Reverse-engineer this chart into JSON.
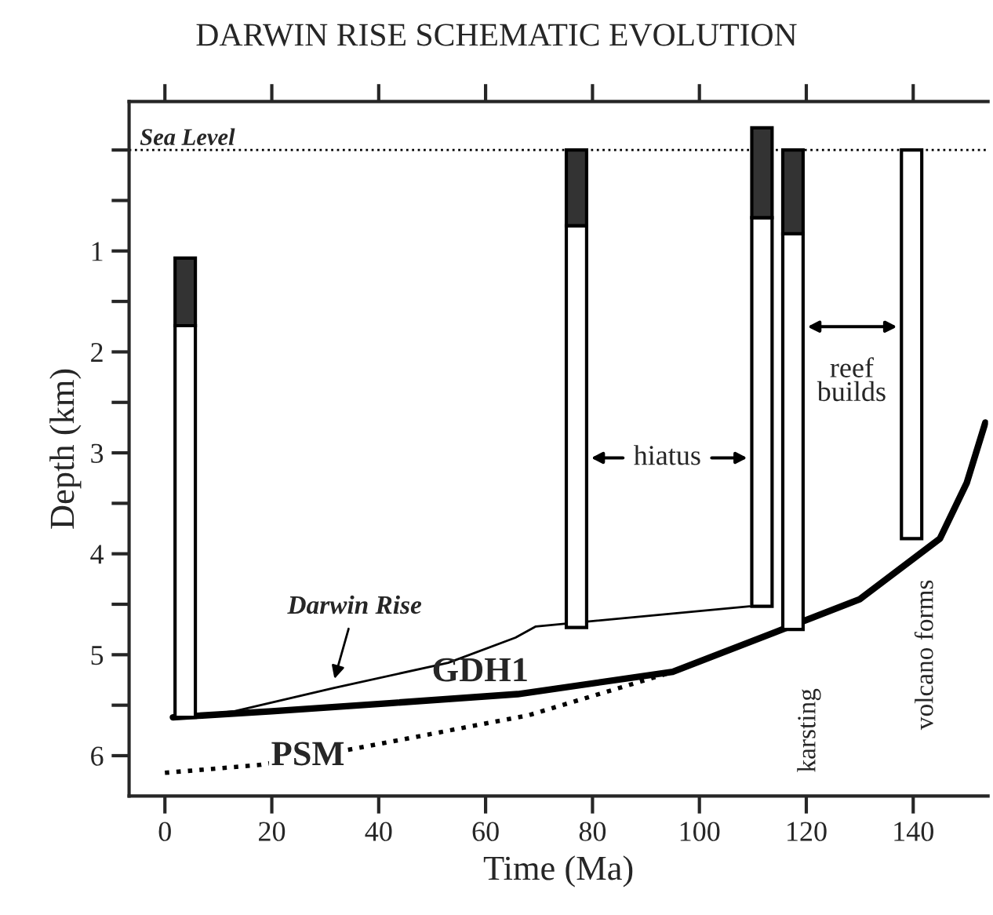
{
  "chart_data": {
    "type": "line",
    "title": "DARWIN RISE SCHEMATIC EVOLUTION",
    "xlabel": "Time (Ma)",
    "ylabel": "Depth (km)",
    "xlim": [
      -6.7,
      154
    ],
    "xticks": [
      0,
      20,
      40,
      60,
      80,
      100,
      120,
      140
    ],
    "ylim": [
      6.4,
      -0.48
    ],
    "yticks": [
      1,
      2,
      3,
      4,
      5,
      6
    ],
    "grid": false,
    "legend": false,
    "series": [
      {
        "type": "bar",
        "color": "#ffffff",
        "x": [
          3.8,
          77,
          111.7,
          117.5,
          139.7
        ],
        "base": [
          1.74,
          0.75,
          0.67,
          0.83,
          0.0
        ],
        "values": [
          3.88,
          3.98,
          3.85,
          3.92,
          3.85
        ]
      },
      {
        "type": "bar",
        "color": "#333333",
        "x": [
          3.8,
          77,
          111.7,
          117.5
        ],
        "base": [
          1.07,
          0.0,
          -0.22,
          0.0
        ],
        "values": [
          0.67,
          0.75,
          0.89,
          0.83
        ]
      },
      {
        "name": "Darwin Rise",
        "color": "#000000",
        "line_style": "solid",
        "x": [
          1.5,
          13,
          31.5,
          53,
          65.6,
          69.4,
          109.4
        ],
        "values": [
          5.62,
          5.56,
          5.33,
          5.08,
          4.83,
          4.72,
          4.52
        ]
      },
      {
        "name": "GDH1",
        "color": "#000000",
        "line_style": "solid",
        "x": [
          1.5,
          20,
          42,
          66,
          95,
          114,
          130,
          145,
          150,
          153.5
        ],
        "values": [
          5.62,
          5.56,
          5.48,
          5.39,
          5.17,
          4.78,
          4.45,
          3.85,
          3.3,
          2.7
        ]
      },
      {
        "name": "PSM",
        "color": "#000000",
        "line_style": "dotted",
        "x": [
          0,
          18,
          35.5,
          68,
          95
        ],
        "values": [
          6.17,
          6.09,
          5.93,
          5.6,
          5.17
        ]
      }
    ],
    "ref_lines": [
      {
        "axis": "y",
        "value": 0,
        "label": "Sea Level",
        "line_style": "dotted"
      }
    ],
    "annotations": [
      "hiatus",
      "reef\nbuilds",
      "karsting",
      "volcano forms"
    ]
  }
}
